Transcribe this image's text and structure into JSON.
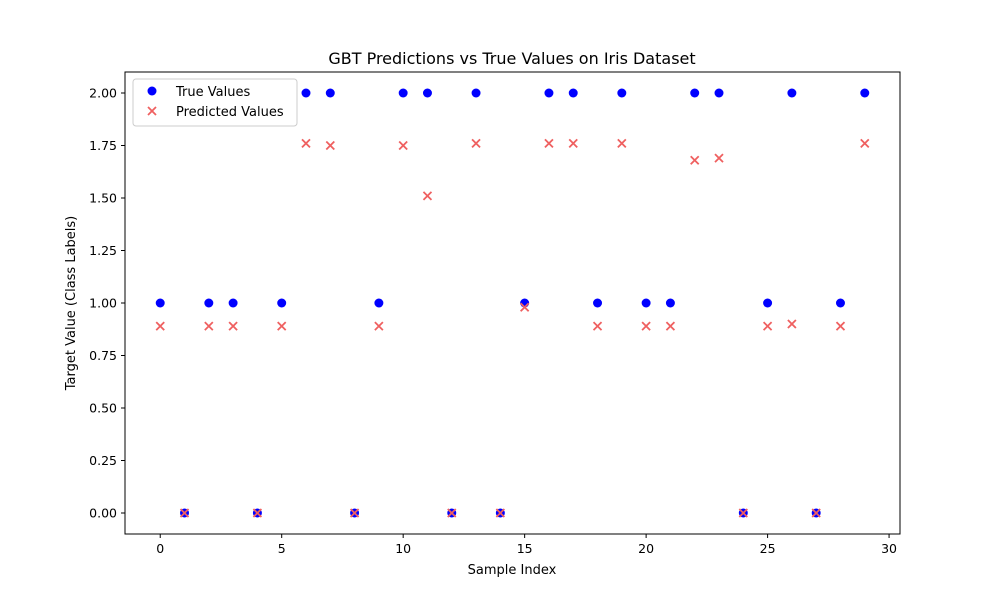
{
  "colors": {
    "true_marker": "#0000ff",
    "pred_marker": "#ef6060"
  },
  "chart_data": {
    "type": "scatter",
    "title": "GBT Predictions vs True Values on Iris Dataset",
    "xlabel": "Sample Index",
    "ylabel": "Target Value (Class Labels)",
    "xlim": [
      -1.45,
      30.45
    ],
    "ylim": [
      -0.1,
      2.1
    ],
    "xticks": [
      0,
      5,
      10,
      15,
      20,
      25,
      30
    ],
    "xtick_labels": [
      "0",
      "5",
      "10",
      "15",
      "20",
      "25",
      "30"
    ],
    "yticks": [
      0,
      0.25,
      0.5,
      0.75,
      1.0,
      1.25,
      1.5,
      1.75,
      2.0
    ],
    "ytick_labels": [
      "0.00",
      "0.25",
      "0.50",
      "0.75",
      "1.00",
      "1.25",
      "1.50",
      "1.75",
      "2.00"
    ],
    "grid": false,
    "legend_position": "top-left",
    "x": [
      0,
      1,
      2,
      3,
      4,
      5,
      6,
      7,
      8,
      9,
      10,
      11,
      12,
      13,
      14,
      15,
      16,
      17,
      18,
      19,
      20,
      21,
      22,
      23,
      24,
      25,
      26,
      27,
      28,
      29
    ],
    "series": [
      {
        "name": "True Values",
        "marker": "circle",
        "values": [
          1,
          0,
          1,
          1,
          0,
          1,
          2,
          2,
          0,
          1,
          2,
          2,
          0,
          2,
          0,
          1,
          2,
          2,
          1,
          2,
          1,
          1,
          2,
          2,
          0,
          1,
          2,
          0,
          1,
          2
        ]
      },
      {
        "name": "Predicted Values",
        "marker": "x",
        "values": [
          0.89,
          0.0,
          0.89,
          0.89,
          0.0,
          0.89,
          1.76,
          1.75,
          0.0,
          0.89,
          1.75,
          1.51,
          0.0,
          1.76,
          0.0,
          0.98,
          1.76,
          1.76,
          0.89,
          1.76,
          0.89,
          0.89,
          1.68,
          1.69,
          0.0,
          0.89,
          0.9,
          0.0,
          0.89,
          1.76
        ]
      }
    ]
  }
}
